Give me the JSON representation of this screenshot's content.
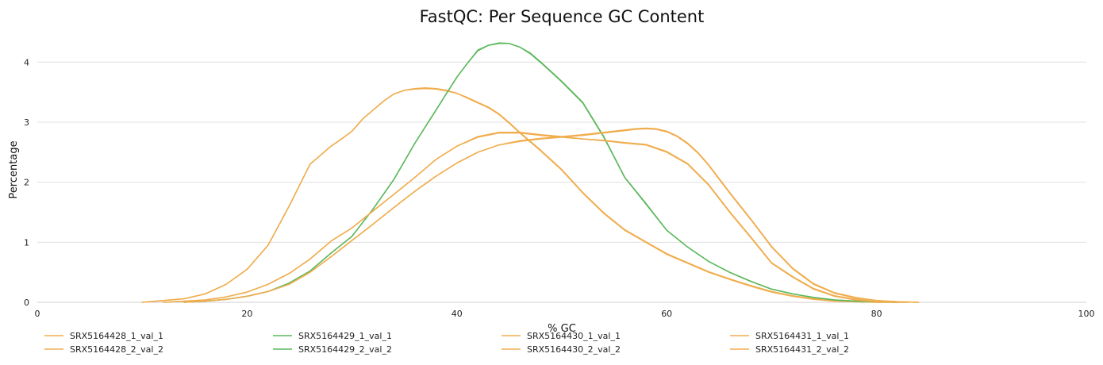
{
  "chart_data": {
    "type": "line",
    "title": "FastQC: Per Sequence GC Content",
    "xlabel": "% GC",
    "ylabel": "Percentage",
    "xlim": [
      0,
      100
    ],
    "ylim": [
      0,
      4.4
    ],
    "xticks": [
      0,
      20,
      40,
      60,
      80,
      100
    ],
    "yticks": [
      0,
      1,
      2,
      3,
      4
    ],
    "grid": "horizontal",
    "legend_position": "bottom",
    "series": [
      {
        "name": "SRX5164428_1_val_1",
        "color": "#f0ad4e",
        "x": [
          10,
          14,
          16,
          18,
          20,
          22,
          24,
          26,
          28,
          29,
          30,
          31,
          32,
          33,
          34,
          35,
          36,
          37,
          38,
          39,
          40,
          41,
          42,
          43,
          44,
          45,
          46,
          48,
          50,
          52,
          54,
          56,
          58,
          60,
          62,
          64,
          66,
          68,
          70,
          72,
          74,
          76,
          78,
          80,
          82,
          83
        ],
        "y": [
          0,
          0.06,
          0.14,
          0.3,
          0.55,
          0.95,
          1.6,
          2.3,
          2.6,
          2.72,
          2.85,
          3.05,
          3.2,
          3.35,
          3.47,
          3.53,
          3.55,
          3.56,
          3.55,
          3.52,
          3.48,
          3.4,
          3.32,
          3.24,
          3.13,
          2.98,
          2.82,
          2.52,
          2.2,
          1.82,
          1.48,
          1.2,
          1.0,
          0.8,
          0.65,
          0.5,
          0.38,
          0.27,
          0.17,
          0.1,
          0.05,
          0.02,
          0.01,
          0,
          0,
          0
        ]
      },
      {
        "name": "SRX5164428_2_val_2",
        "color": "#f0ad4e",
        "x": [
          10,
          14,
          16,
          18,
          20,
          22,
          24,
          26,
          28,
          29,
          30,
          31,
          32,
          33,
          34,
          35,
          36,
          37,
          38,
          39,
          40,
          41,
          42,
          43,
          44,
          45,
          46,
          48,
          50,
          52,
          54,
          56,
          58,
          60,
          62,
          64,
          66,
          68,
          70,
          72,
          74,
          76,
          78,
          80,
          82,
          83
        ],
        "y": [
          0,
          0.06,
          0.14,
          0.3,
          0.55,
          0.95,
          1.6,
          2.3,
          2.6,
          2.72,
          2.85,
          3.05,
          3.2,
          3.35,
          3.47,
          3.53,
          3.56,
          3.57,
          3.56,
          3.53,
          3.48,
          3.41,
          3.33,
          3.25,
          3.14,
          2.99,
          2.83,
          2.53,
          2.21,
          1.83,
          1.49,
          1.21,
          1.01,
          0.81,
          0.66,
          0.51,
          0.39,
          0.28,
          0.18,
          0.11,
          0.06,
          0.03,
          0.01,
          0,
          0,
          0
        ]
      },
      {
        "name": "SRX5164429_1_val_1",
        "color": "#5cb85c",
        "x": [
          14,
          16,
          18,
          20,
          22,
          24,
          26,
          28,
          30,
          32,
          34,
          36,
          38,
          40,
          41,
          42,
          43,
          44,
          45,
          46,
          47,
          48,
          50,
          52,
          54,
          56,
          58,
          60,
          62,
          64,
          66,
          68,
          70,
          72,
          74,
          76,
          78,
          80,
          82
        ],
        "y": [
          0,
          0.02,
          0.05,
          0.1,
          0.18,
          0.32,
          0.52,
          0.82,
          1.1,
          1.55,
          2.05,
          2.65,
          3.2,
          3.75,
          3.98,
          4.2,
          4.28,
          4.32,
          4.31,
          4.25,
          4.15,
          4.0,
          3.68,
          3.33,
          2.76,
          2.08,
          1.65,
          1.2,
          0.92,
          0.68,
          0.5,
          0.35,
          0.22,
          0.14,
          0.08,
          0.04,
          0.02,
          0.01,
          0
        ]
      },
      {
        "name": "SRX5164429_2_val_2",
        "color": "#5cb85c",
        "x": [
          14,
          16,
          18,
          20,
          22,
          24,
          26,
          28,
          30,
          32,
          34,
          36,
          38,
          40,
          41,
          42,
          43,
          44,
          45,
          46,
          47,
          48,
          50,
          52,
          54,
          56,
          58,
          60,
          62,
          64,
          66,
          68,
          70,
          72,
          74,
          76,
          78,
          80,
          82
        ],
        "y": [
          0,
          0.02,
          0.05,
          0.1,
          0.18,
          0.32,
          0.52,
          0.82,
          1.1,
          1.55,
          2.05,
          2.65,
          3.2,
          3.75,
          3.98,
          4.19,
          4.28,
          4.31,
          4.31,
          4.25,
          4.14,
          3.99,
          3.67,
          3.32,
          2.75,
          2.08,
          1.64,
          1.2,
          0.92,
          0.68,
          0.5,
          0.35,
          0.22,
          0.14,
          0.08,
          0.04,
          0.02,
          0.01,
          0
        ]
      },
      {
        "name": "SRX5164430_1_val_1",
        "color": "#f0ad4e",
        "x": [
          12,
          16,
          18,
          20,
          22,
          24,
          26,
          28,
          30,
          32,
          34,
          36,
          38,
          40,
          42,
          44,
          46,
          48,
          50,
          52,
          54,
          56,
          58,
          60,
          62,
          64,
          66,
          68,
          70,
          72,
          74,
          76,
          78,
          80,
          82
        ],
        "y": [
          0,
          0.04,
          0.09,
          0.17,
          0.3,
          0.48,
          0.72,
          1.02,
          1.24,
          1.52,
          1.8,
          2.08,
          2.38,
          2.6,
          2.75,
          2.82,
          2.82,
          2.78,
          2.75,
          2.72,
          2.69,
          2.65,
          2.62,
          2.5,
          2.3,
          1.95,
          1.5,
          1.08,
          0.65,
          0.42,
          0.22,
          0.1,
          0.04,
          0.01,
          0
        ]
      },
      {
        "name": "SRX5164430_2_val_2",
        "color": "#f0ad4e",
        "x": [
          12,
          16,
          18,
          20,
          22,
          24,
          26,
          28,
          30,
          32,
          34,
          36,
          38,
          40,
          42,
          44,
          46,
          48,
          50,
          52,
          54,
          56,
          58,
          60,
          62,
          64,
          66,
          68,
          70,
          72,
          74,
          76,
          78,
          80,
          82
        ],
        "y": [
          0,
          0.04,
          0.09,
          0.17,
          0.3,
          0.48,
          0.72,
          1.02,
          1.24,
          1.52,
          1.8,
          2.08,
          2.38,
          2.6,
          2.76,
          2.83,
          2.83,
          2.79,
          2.76,
          2.72,
          2.7,
          2.66,
          2.63,
          2.51,
          2.31,
          1.96,
          1.51,
          1.09,
          0.66,
          0.43,
          0.23,
          0.11,
          0.05,
          0.01,
          0
        ]
      },
      {
        "name": "SRX5164431_1_val_1",
        "color": "#f0ad4e",
        "x": [
          14,
          16,
          18,
          20,
          22,
          24,
          26,
          28,
          30,
          32,
          34,
          36,
          38,
          40,
          42,
          44,
          46,
          48,
          50,
          52,
          54,
          56,
          57,
          58,
          59,
          60,
          61,
          62,
          63,
          64,
          65,
          66,
          68,
          70,
          72,
          74,
          76,
          78,
          80,
          82,
          84
        ],
        "y": [
          0,
          0.02,
          0.05,
          0.1,
          0.18,
          0.3,
          0.5,
          0.76,
          1.03,
          1.3,
          1.58,
          1.85,
          2.1,
          2.32,
          2.5,
          2.62,
          2.68,
          2.72,
          2.75,
          2.78,
          2.82,
          2.86,
          2.88,
          2.89,
          2.88,
          2.84,
          2.76,
          2.64,
          2.48,
          2.28,
          2.05,
          1.82,
          1.38,
          0.92,
          0.56,
          0.3,
          0.15,
          0.07,
          0.03,
          0.01,
          0
        ]
      },
      {
        "name": "SRX5164431_2_val_2",
        "color": "#f0ad4e",
        "x": [
          14,
          16,
          18,
          20,
          22,
          24,
          26,
          28,
          30,
          32,
          34,
          36,
          38,
          40,
          42,
          44,
          46,
          48,
          50,
          52,
          54,
          56,
          57,
          58,
          59,
          60,
          61,
          62,
          63,
          64,
          65,
          66,
          68,
          70,
          72,
          74,
          76,
          78,
          80,
          82,
          84
        ],
        "y": [
          0,
          0.02,
          0.05,
          0.1,
          0.18,
          0.3,
          0.5,
          0.76,
          1.03,
          1.3,
          1.58,
          1.85,
          2.1,
          2.32,
          2.5,
          2.62,
          2.69,
          2.73,
          2.76,
          2.79,
          2.83,
          2.87,
          2.89,
          2.9,
          2.89,
          2.85,
          2.77,
          2.65,
          2.49,
          2.29,
          2.06,
          1.83,
          1.39,
          0.93,
          0.57,
          0.31,
          0.16,
          0.08,
          0.03,
          0.01,
          0
        ]
      }
    ]
  }
}
